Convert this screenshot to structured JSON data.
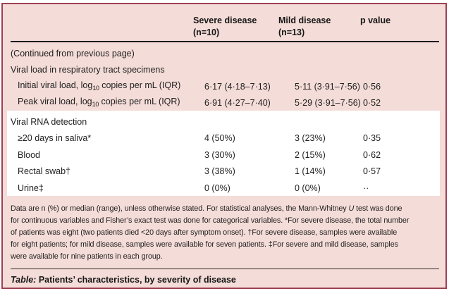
{
  "colors": {
    "table_background": "#f4dcd8",
    "table_border": "#9e4154",
    "highlight_band": "#ffffff",
    "rule": "#1a1a1a"
  },
  "table": {
    "header": [
      {
        "label": "Severe disease",
        "sub": "(n=10)"
      },
      {
        "label": "Mild disease",
        "sub": "(n=13)"
      },
      {
        "label": "p value",
        "sub": ""
      }
    ],
    "rows": [
      {
        "type": "section",
        "label": "(Continued from previous page)"
      },
      {
        "type": "section",
        "label": "Viral load in respiratory tract specimens"
      },
      {
        "type": "data-sub",
        "label_pre": "Initial viral load, log",
        "label_sub": "10",
        "label_post": " copies per mL (IQR)",
        "severe": "6·17 (4·18–7·13)",
        "mild": "5·11 (3·91–7·56)",
        "p": "0·56"
      },
      {
        "type": "data-sub",
        "label_pre": "Peak viral load, log",
        "label_sub": "10",
        "label_post": " copies per mL (IQR)",
        "severe": "6·91 (4·27–7·40)",
        "mild": "5·29 (3·91–7·56)",
        "p": "0·52"
      },
      {
        "type": "section",
        "label": "Viral RNA detection"
      },
      {
        "type": "data",
        "label": "≥20 days in saliva*",
        "severe": "4 (50%)",
        "mild": "3 (23%)",
        "p": "0·35"
      },
      {
        "type": "data",
        "label": "Blood",
        "severe": "3 (30%)",
        "mild": "2 (15%)",
        "p": "0·62"
      },
      {
        "type": "data",
        "label": "Rectal swab†",
        "severe": "3 (38%)",
        "mild": "1 (14%)",
        "p": "0·57"
      },
      {
        "type": "data",
        "label": "Urine‡",
        "severe": "0 (0%)",
        "mild": "0 (0%)",
        "p": "··"
      }
    ],
    "footnote": {
      "line1_pre": "Data are n (%) or median (range), unless otherwise stated. For statistical analyses, the Mann-Whitney ",
      "line1_italic": "U",
      "line1_post": " test was done",
      "line2": "for continuous variables and Fisher’s exact test was done for categorical variables. *For severe disease, the total number",
      "line3": "of patients was eight (two patients died <20 days after symptom onset). †For severe disease, samples were available",
      "line4": "for eight patients; for mild disease, samples were available for seven patients. ‡For severe and mild disease, samples",
      "line5": "were available for nine patients in each group."
    },
    "caption": {
      "label": "Table:",
      "text": " Patients’ characteristics, by severity of disease"
    }
  }
}
